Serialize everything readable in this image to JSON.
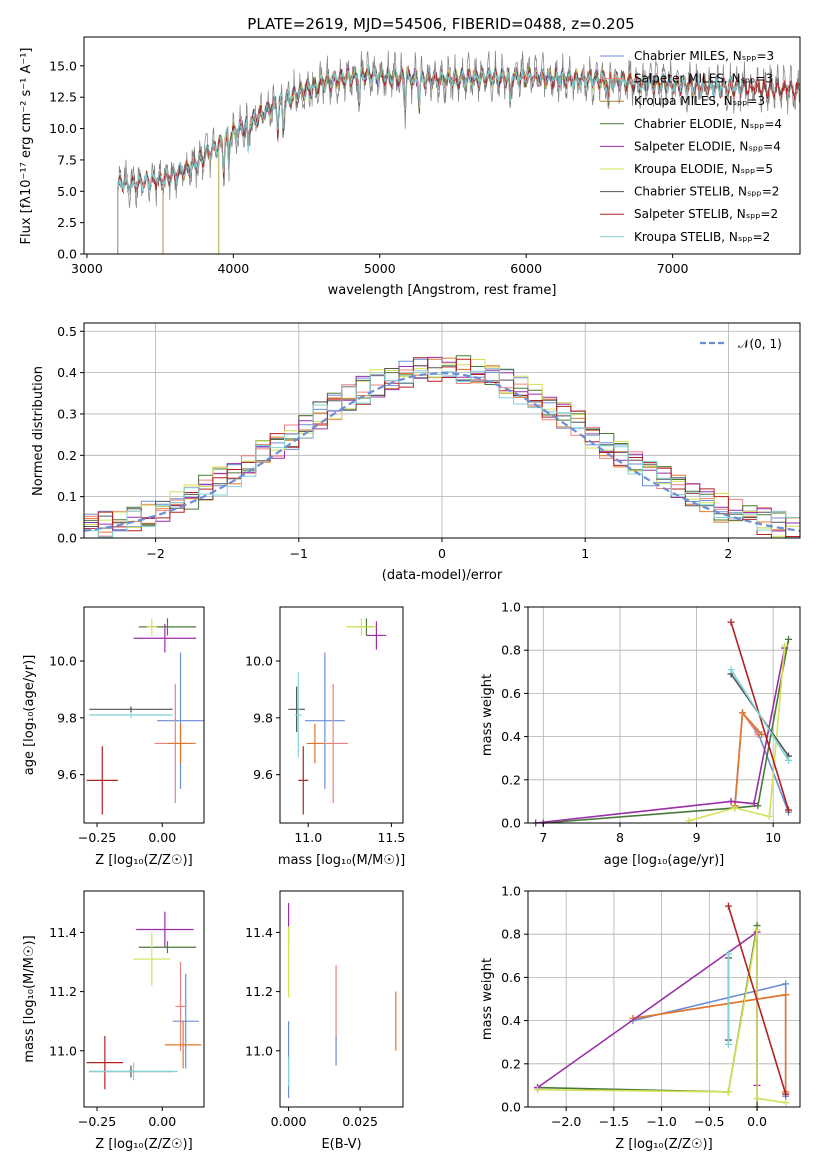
{
  "chart_data": [
    {
      "id": "spectrum",
      "type": "line",
      "title": "PLATE=2619, MJD=54506, FIBERID=0488, z=0.205",
      "xlabel": "wavelength [Angstrom, rest frame]",
      "ylabel": "Flux [fλ10⁻¹⁷ erg cm⁻² s⁻¹ A⁻¹]",
      "xlim": [
        2980,
        7870
      ],
      "ylim": [
        0,
        17.3
      ],
      "xticks": [
        "3000",
        "4000",
        "5000",
        "6000",
        "7000"
      ],
      "yticks": [
        "0.0",
        "2.5",
        "5.0",
        "7.5",
        "10.0",
        "12.5",
        "15.0"
      ],
      "grid": false,
      "legend_position": "top-right",
      "continuum": {
        "x": [
          3210,
          3300,
          3500,
          3700,
          3800,
          3900,
          4000,
          4100,
          4200,
          4300,
          4400,
          4500,
          4600,
          4700,
          4800,
          4900,
          5000,
          5200,
          5400,
          5600,
          5800,
          6000,
          6200,
          6400,
          6600,
          6800,
          7000,
          7200,
          7400,
          7600,
          7870
        ],
        "y": [
          5.6,
          5.6,
          5.9,
          6.8,
          7.8,
          8.6,
          9.6,
          10.4,
          11.2,
          11.9,
          12.5,
          13.1,
          13.6,
          13.9,
          14.1,
          14.3,
          14.2,
          14.0,
          13.9,
          14.0,
          14.1,
          14.1,
          14.0,
          13.9,
          13.8,
          13.6,
          13.5,
          13.4,
          13.3,
          13.2,
          13.1
        ]
      },
      "series": [
        {
          "name": "Chabrier MILES, Nₛₚₚ=3",
          "color": "#6b8ed6",
          "x_start": 3520,
          "x_end": 7480
        },
        {
          "name": "Salpeter MILES, Nₛₚₚ=3",
          "color": "#f08080",
          "x_start": 3520,
          "x_end": 7480
        },
        {
          "name": "Kroupa MILES, Nₛₚₚ=3",
          "color": "#b5802a",
          "x_start": 3520,
          "x_end": 7480
        },
        {
          "name": "Chabrier ELODIE, Nₛₚₚ=4",
          "color": "#4a7a3a",
          "x_start": 3900,
          "x_end": 6800
        },
        {
          "name": "Salpeter ELODIE, Nₛₚₚ=4",
          "color": "#9b2ea8",
          "x_start": 3900,
          "x_end": 6800
        },
        {
          "name": "Kroupa ELODIE, Nₛₚₚ=5",
          "color": "#d4e157",
          "x_start": 3900,
          "x_end": 6800
        },
        {
          "name": "Chabrier STELIB, Nₛₚₚ=2",
          "color": "#555555",
          "x_start": 3210,
          "x_end": 7870
        },
        {
          "name": "Salpeter STELIB, Nₛₚₚ=2",
          "color": "#b22222",
          "x_start": 3210,
          "x_end": 7870
        },
        {
          "name": "Kroupa STELIB, Nₛₚₚ=2",
          "color": "#80d4d8",
          "x_start": 3210,
          "x_end": 7480
        }
      ],
      "observed_color": "#808080"
    },
    {
      "id": "residuals",
      "type": "histogram",
      "xlabel": "(data-model)/error",
      "ylabel": "Normed distribution",
      "xlim": [
        -2.5,
        2.5
      ],
      "ylim": [
        0,
        0.52
      ],
      "xticks": [
        "−2",
        "−1",
        "0",
        "1",
        "2"
      ],
      "yticks": [
        "0.0",
        "0.1",
        "0.2",
        "0.3",
        "0.4",
        "0.5"
      ],
      "grid": true,
      "legend_position": "top-right",
      "legend": "𝒩(0, 1)",
      "gaussian_color": "#6b8ed6",
      "bin_width": 0.1,
      "bin_start": -2.5,
      "hist_colors": [
        "#6b8ed6",
        "#f08080",
        "#e0782a",
        "#4a7a3a",
        "#9b2ea8",
        "#d4e157",
        "#555555",
        "#b22222",
        "#80d4d8"
      ]
    },
    {
      "id": "age-vs-Z",
      "type": "errorbar",
      "xlabel": "Z [log₁₀(Z/Z☉)]",
      "ylabel": "age  [log₁₀(age/yr)]",
      "xlim": [
        -0.3,
        0.16
      ],
      "ylim": [
        9.43,
        10.19
      ],
      "xticks": [
        "−0.25",
        "0.00"
      ],
      "xtick_values": [
        -0.25,
        0.0
      ],
      "yticks": [
        "9.6",
        "9.8",
        "10.0"
      ],
      "ytick_values": [
        9.6,
        9.8,
        10.0
      ],
      "points": [
        {
          "x": 0.07,
          "y": 9.79,
          "xerr": 0.09,
          "yerr": 0.24,
          "color": "#6b8ed6"
        },
        {
          "x": 0.05,
          "y": 9.71,
          "xerr": 0.08,
          "yerr": 0.21,
          "color": "#f08080"
        },
        {
          "x": 0.07,
          "y": 9.71,
          "xerr": 0.05,
          "yerr": 0.07,
          "color": "#e0782a"
        },
        {
          "x": 0.02,
          "y": 10.12,
          "xerr": 0.11,
          "yerr": 0.03,
          "color": "#4a7a3a"
        },
        {
          "x": 0.01,
          "y": 10.08,
          "xerr": 0.12,
          "yerr": 0.05,
          "color": "#9b2ea8"
        },
        {
          "x": -0.04,
          "y": 10.12,
          "xerr": 0.02,
          "yerr": 0.03,
          "color": "#d4e157"
        },
        {
          "x": -0.12,
          "y": 9.83,
          "xerr": 0.16,
          "yerr": 0.01,
          "color": "#555555"
        },
        {
          "x": -0.23,
          "y": 9.58,
          "xerr": 0.06,
          "yerr": 0.12,
          "color": "#b22222"
        },
        {
          "x": -0.12,
          "y": 9.81,
          "xerr": 0.16,
          "yerr": 0.01,
          "color": "#80d4d8"
        }
      ]
    },
    {
      "id": "age-vs-mass",
      "type": "errorbar",
      "xlabel": "mass [log₁₀(M/M☉)]",
      "ylabel": "",
      "xlim": [
        10.83,
        11.57
      ],
      "ylim": [
        9.43,
        10.19
      ],
      "xticks": [
        "11.0",
        "11.5"
      ],
      "xtick_values": [
        11.0,
        11.5
      ],
      "yticks": [
        "9.6",
        "9.8",
        "10.0"
      ],
      "ytick_values": [
        9.6,
        9.8,
        10.0
      ],
      "points": [
        {
          "x": 11.1,
          "y": 9.79,
          "xerr": 0.12,
          "yerr": 0.24,
          "color": "#6b8ed6"
        },
        {
          "x": 11.15,
          "y": 9.71,
          "xerr": 0.09,
          "yerr": 0.21,
          "color": "#f08080"
        },
        {
          "x": 11.04,
          "y": 9.71,
          "xerr": 0.05,
          "yerr": 0.07,
          "color": "#e0782a"
        },
        {
          "x": 11.35,
          "y": 10.12,
          "xerr": 0.05,
          "yerr": 0.03,
          "color": "#4a7a3a"
        },
        {
          "x": 11.41,
          "y": 10.09,
          "xerr": 0.06,
          "yerr": 0.05,
          "color": "#9b2ea8"
        },
        {
          "x": 11.32,
          "y": 10.12,
          "xerr": 0.09,
          "yerr": 0.03,
          "color": "#d4e157"
        },
        {
          "x": 10.93,
          "y": 9.83,
          "xerr": 0.05,
          "yerr": 0.08,
          "color": "#555555"
        },
        {
          "x": 10.97,
          "y": 9.58,
          "xerr": 0.03,
          "yerr": 0.12,
          "color": "#b22222"
        },
        {
          "x": 10.94,
          "y": 9.81,
          "xerr": 0.02,
          "yerr": 0.15,
          "color": "#80d4d8"
        }
      ]
    },
    {
      "id": "weight-vs-age",
      "type": "line",
      "xlabel": "age  [log₁₀(age/yr)]",
      "ylabel": "mass weight",
      "xlim": [
        6.8,
        10.35
      ],
      "ylim": [
        0,
        1.0
      ],
      "xticks": [
        "7",
        "8",
        "9",
        "10"
      ],
      "xtick_values": [
        7,
        8,
        9,
        10
      ],
      "yticks": [
        "0.0",
        "0.2",
        "0.4",
        "0.6",
        "0.8",
        "1.0"
      ],
      "ytick_values": [
        0,
        0.2,
        0.4,
        0.6,
        0.8,
        1.0
      ],
      "grid": true,
      "series": [
        {
          "color": "#6b8ed6",
          "x": [
            9.5,
            9.6,
            9.8,
            10.2
          ],
          "y": [
            0.07,
            0.51,
            0.42,
            0.05
          ]
        },
        {
          "color": "#f08080",
          "x": [
            9.5,
            9.6,
            9.8
          ],
          "y": [
            0.08,
            0.51,
            0.41
          ]
        },
        {
          "color": "#e0782a",
          "x": [
            9.5,
            9.6,
            9.85
          ],
          "y": [
            0.08,
            0.51,
            0.41
          ]
        },
        {
          "color": "#4a7a3a",
          "x": [
            7.0,
            9.5,
            9.8,
            10.2
          ],
          "y": [
            0.0,
            0.07,
            0.08,
            0.85
          ]
        },
        {
          "color": "#9b2ea8",
          "x": [
            6.9,
            9.45,
            9.75,
            10.15
          ],
          "y": [
            0.0,
            0.1,
            0.09,
            0.81
          ]
        },
        {
          "color": "#d4e157",
          "x": [
            8.9,
            9.5,
            9.95,
            10.15
          ],
          "y": [
            0.01,
            0.07,
            0.03,
            0.82
          ]
        },
        {
          "color": "#555555",
          "x": [
            9.45,
            10.2
          ],
          "y": [
            0.69,
            0.31
          ]
        },
        {
          "color": "#b22222",
          "x": [
            9.45,
            10.2
          ],
          "y": [
            0.93,
            0.06
          ]
        },
        {
          "color": "#80d4d8",
          "x": [
            9.45,
            10.2
          ],
          "y": [
            0.71,
            0.29
          ]
        }
      ]
    },
    {
      "id": "mass-vs-Z",
      "type": "errorbar",
      "xlabel": "Z [log₁₀(Z/Z☉)]",
      "ylabel": "mass [log₁₀(M/M☉)]",
      "xlim": [
        -0.3,
        0.16
      ],
      "ylim": [
        10.81,
        11.54
      ],
      "xticks": [
        "−0.25",
        "0.00"
      ],
      "xtick_values": [
        -0.25,
        0.0
      ],
      "yticks": [
        "11.0",
        "11.2",
        "11.4"
      ],
      "ytick_values": [
        11.0,
        11.2,
        11.4
      ],
      "points": [
        {
          "x": 0.09,
          "y": 11.1,
          "xerr": 0.05,
          "yerr": 0.16,
          "color": "#6b8ed6"
        },
        {
          "x": 0.07,
          "y": 11.15,
          "xerr": 0.02,
          "yerr": 0.15,
          "color": "#f08080"
        },
        {
          "x": 0.08,
          "y": 11.02,
          "xerr": 0.07,
          "yerr": 0.08,
          "color": "#e0782a"
        },
        {
          "x": 0.02,
          "y": 11.35,
          "xerr": 0.11,
          "yerr": 0.02,
          "color": "#4a7a3a"
        },
        {
          "x": 0.01,
          "y": 11.41,
          "xerr": 0.11,
          "yerr": 0.06,
          "color": "#9b2ea8"
        },
        {
          "x": -0.04,
          "y": 11.31,
          "xerr": 0.07,
          "yerr": 0.09,
          "color": "#d4e157"
        },
        {
          "x": -0.12,
          "y": 10.93,
          "xerr": 0.16,
          "yerr": 0.02,
          "color": "#555555"
        },
        {
          "x": -0.22,
          "y": 10.96,
          "xerr": 0.07,
          "yerr": 0.09,
          "color": "#b22222"
        },
        {
          "x": -0.11,
          "y": 10.93,
          "xerr": 0.17,
          "yerr": 0.03,
          "color": "#80d4d8"
        }
      ]
    },
    {
      "id": "mass-vs-EBV",
      "type": "errorbar",
      "xlabel": "E(B-V)",
      "ylabel": "",
      "xlim": [
        -0.003,
        0.04
      ],
      "ylim": [
        10.81,
        11.54
      ],
      "xticks": [
        "0.000",
        "0.025"
      ],
      "xtick_values": [
        0.0,
        0.025
      ],
      "yticks": [
        "11.0",
        "11.2",
        "11.4"
      ],
      "ytick_values": [
        11.0,
        11.2,
        11.4
      ],
      "points": [
        {
          "x": 0.0,
          "y": 10.97,
          "xerr": 0.0,
          "yerr": 0.13,
          "color": "#6b8ed6"
        },
        {
          "x": 0.0166,
          "y": 11.16,
          "xerr": 0.0,
          "yerr": 0.13,
          "color": "#f08080"
        },
        {
          "x": 0.0166,
          "y": 11.0,
          "xerr": 0.0,
          "yerr": 0.05,
          "color": "#6b8ed6"
        },
        {
          "x": 0.0375,
          "y": 11.1,
          "xerr": 0.0,
          "yerr": 0.1,
          "color": "#e0782a"
        },
        {
          "x": 0.0,
          "y": 11.43,
          "xerr": 0.0,
          "yerr": 0.07,
          "color": "#9b2ea8"
        },
        {
          "x": 0.0,
          "y": 11.3,
          "xerr": 0.0,
          "yerr": 0.12,
          "color": "#d4e157"
        },
        {
          "x": 0.0,
          "y": 10.93,
          "xerr": 0.0,
          "yerr": 0.05,
          "color": "#80d4d8"
        }
      ]
    },
    {
      "id": "weight-vs-Z",
      "type": "line",
      "xlabel": "Z [log₁₀(Z/Z☉)]",
      "ylabel": "mass weight",
      "xlim": [
        -2.4,
        0.45
      ],
      "ylim": [
        0,
        1.0
      ],
      "xticks": [
        "−2.0",
        "−1.5",
        "−1.0",
        "−0.5",
        "0.0"
      ],
      "xtick_values": [
        -2.0,
        -1.5,
        -1.0,
        -0.5,
        0.0
      ],
      "yticks": [
        "0.0",
        "0.2",
        "0.4",
        "0.6",
        "0.8",
        "1.0"
      ],
      "ytick_values": [
        0,
        0.2,
        0.4,
        0.6,
        0.8,
        1.0
      ],
      "grid": true,
      "series": [
        {
          "color": "#6b8ed6",
          "x": [
            -1.3,
            0.3,
            0.3
          ],
          "y": [
            0.4,
            0.57,
            0.05
          ]
        },
        {
          "color": "#f08080",
          "x": [
            -1.3,
            0.3,
            0.3
          ],
          "y": [
            0.41,
            0.52,
            0.07
          ]
        },
        {
          "color": "#e0782a",
          "x": [
            -1.3,
            0.3,
            0.3
          ],
          "y": [
            0.41,
            0.52,
            0.07
          ]
        },
        {
          "color": "#4a7a3a",
          "x": [
            -2.3,
            -0.3,
            0.0,
            0.0
          ],
          "y": [
            0.09,
            0.07,
            0.84,
            0.0
          ]
        },
        {
          "color": "#9b2ea8",
          "x": [
            -2.3,
            0.0,
            0.0
          ],
          "y": [
            0.09,
            0.81,
            0.1
          ]
        },
        {
          "color": "#d4e157",
          "x": [
            -2.3,
            -0.3,
            0.0,
            0.0,
            0.3
          ],
          "y": [
            0.08,
            0.07,
            0.82,
            0.04,
            0.02
          ]
        },
        {
          "color": "#555555",
          "x": [
            -0.3,
            -0.3
          ],
          "y": [
            0.69,
            0.31
          ]
        },
        {
          "color": "#b22222",
          "x": [
            -0.3,
            0.3
          ],
          "y": [
            0.93,
            0.06
          ]
        },
        {
          "color": "#80d4d8",
          "x": [
            -0.3,
            -0.3
          ],
          "y": [
            0.71,
            0.29
          ]
        }
      ]
    }
  ]
}
